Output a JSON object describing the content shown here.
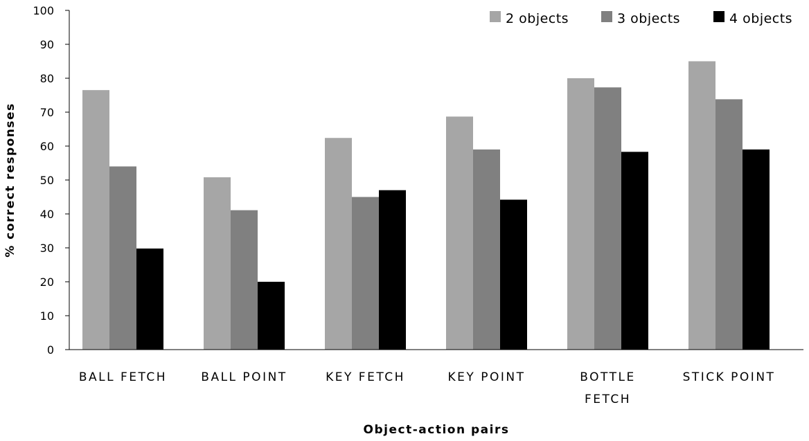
{
  "chart_data": {
    "type": "bar",
    "title": "",
    "xlabel": "Object-action pairs",
    "ylabel": "% correct responses",
    "ylim": [
      0,
      100
    ],
    "yticks": [
      0,
      10,
      20,
      30,
      40,
      50,
      60,
      70,
      80,
      90,
      100
    ],
    "grid": false,
    "legend_position": "top-right",
    "categories": [
      [
        "BALL FETCH"
      ],
      [
        "BALL POINT"
      ],
      [
        "KEY FETCH"
      ],
      [
        "KEY POINT"
      ],
      [
        "BOTTLE",
        "FETCH"
      ],
      [
        "STICK POINT"
      ]
    ],
    "series": [
      {
        "name": "2 objects",
        "color": "#a6a6a6",
        "values": [
          76.5,
          50.8,
          62.4,
          68.7,
          80.0,
          85.0
        ]
      },
      {
        "name": "3 objects",
        "color": "#808080",
        "values": [
          54.0,
          41.1,
          45.0,
          59.0,
          77.3,
          73.8
        ]
      },
      {
        "name": "4 objects",
        "color": "#000000",
        "values": [
          29.8,
          20.0,
          47.0,
          44.2,
          58.3,
          59.0
        ]
      }
    ]
  }
}
